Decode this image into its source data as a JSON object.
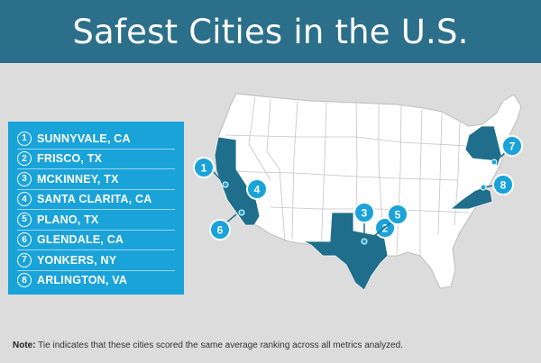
{
  "header": {
    "title": "Safest Cities in the U.S."
  },
  "legend": {
    "items": [
      {
        "num": "1",
        "name": "SUNNYVALE, CA"
      },
      {
        "num": "2",
        "name": "FRISCO, TX"
      },
      {
        "num": "3",
        "name": "MCKINNEY, TX"
      },
      {
        "num": "4",
        "name": "SANTA CLARITA, CA"
      },
      {
        "num": "5",
        "name": "PLANO, TX"
      },
      {
        "num": "6",
        "name": "GLENDALE, CA"
      },
      {
        "num": "7",
        "name": "YONKERS, NY"
      },
      {
        "num": "8",
        "name": "ARLINGTON, VA"
      }
    ]
  },
  "markers": [
    "1",
    "2",
    "3",
    "4",
    "5",
    "6",
    "7",
    "8"
  ],
  "note": {
    "label": "Note:",
    "text": "Tie indicates that these cities scored the same average ranking across all metrics analyzed."
  },
  "colors": {
    "header": "#2b6f8a",
    "legend": "#1aa3d9",
    "highlight_state": "#1f6e8c",
    "state_fill": "#ffffff",
    "background": "#dcdcdc"
  }
}
